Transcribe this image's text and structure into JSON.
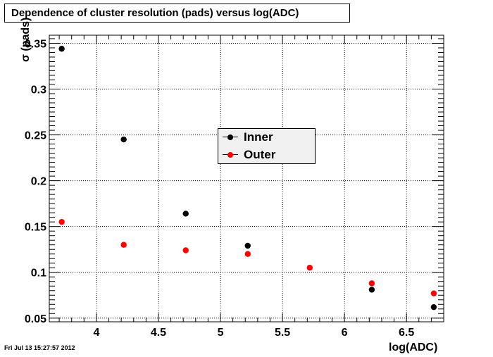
{
  "chart_data": {
    "type": "scatter",
    "title": "Dependence of cluster resolution (pads) versus log(ADC)",
    "xlabel": "log(ADC)",
    "ylabel": "σ (pads)",
    "xlim": [
      3.62,
      6.8
    ],
    "ylim": [
      0.046,
      0.3588
    ],
    "x_ticks": [
      4,
      4.5,
      5,
      5.5,
      6,
      6.5
    ],
    "x_tick_labels": [
      "4",
      "4.5",
      "5",
      "5.5",
      "6",
      "6.5"
    ],
    "y_ticks": [
      0.05,
      0.1,
      0.15,
      0.2,
      0.25,
      0.3,
      0.35
    ],
    "y_tick_labels": [
      "0.05",
      "0.1",
      "0.15",
      "0.2",
      "0.25",
      "0.3",
      "0.35"
    ],
    "grid": true,
    "legend_position": "center",
    "series": [
      {
        "name": "Inner",
        "color": "#000000",
        "x": [
          3.72,
          4.22,
          4.72,
          5.22,
          6.22,
          6.72
        ],
        "y": [
          0.344,
          0.245,
          0.164,
          0.129,
          0.081,
          0.062
        ]
      },
      {
        "name": "Outer",
        "color": "#ff0000",
        "x": [
          3.72,
          4.22,
          4.72,
          5.22,
          5.72,
          6.22,
          6.72
        ],
        "y": [
          0.155,
          0.13,
          0.124,
          0.12,
          0.105,
          0.088,
          0.077
        ]
      }
    ]
  },
  "timestamp": "Fri Jul 13 15:27:57 2012"
}
